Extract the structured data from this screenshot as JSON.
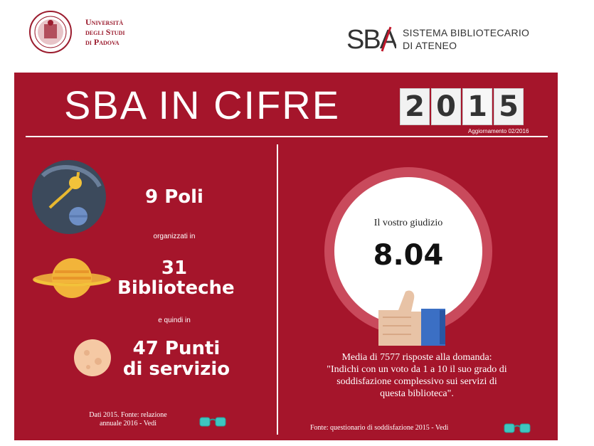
{
  "header": {
    "university_lines": [
      "Università",
      "degli Studi",
      "di Padova"
    ],
    "sba_logo_text": "SBA",
    "sba_name_lines": [
      "SISTEMA BIBLIOTECARIO",
      "DI ATENEO"
    ]
  },
  "infographic": {
    "title": "SBA IN CIFRE",
    "year_digits": [
      "2",
      "0",
      "1",
      "5"
    ],
    "update_note": "Aggiornamento 02/2016",
    "left": {
      "poli": "9 Poli",
      "connector_1": "organizzati in",
      "biblioteche_count": "31",
      "biblioteche_label": "Biblioteche",
      "connector_2": "e quindi in",
      "punti_line1": "47 Punti",
      "punti_line2": "di servizio",
      "source_line1": "Dati 2015. Fonte: relazione",
      "source_line2": "annuale 2016 - Vedi"
    },
    "right": {
      "judgement_label": "Il vostro giudizio",
      "judgement_value": "8.04",
      "desc_line1": "Media di 7577 risposte alla domanda:",
      "desc_line2": "\"Indichi con un voto da 1 a 10 il suo grado di",
      "desc_line3": "soddisfazione complessivo sui servizi di",
      "desc_line4": "questa biblioteca\".",
      "source": "Fonte: questionario di soddisfazione 2015 - Vedi"
    }
  },
  "colors": {
    "panel_red": "#a5152b",
    "brand_red": "#9b1c2e",
    "ring_pink": "#c94a5c"
  },
  "icons": [
    "university-seal-icon",
    "sba-logo-icon",
    "planet-blue-icon",
    "saturn-icon",
    "moon-icon",
    "glasses-icon",
    "thumbs-up-icon"
  ]
}
